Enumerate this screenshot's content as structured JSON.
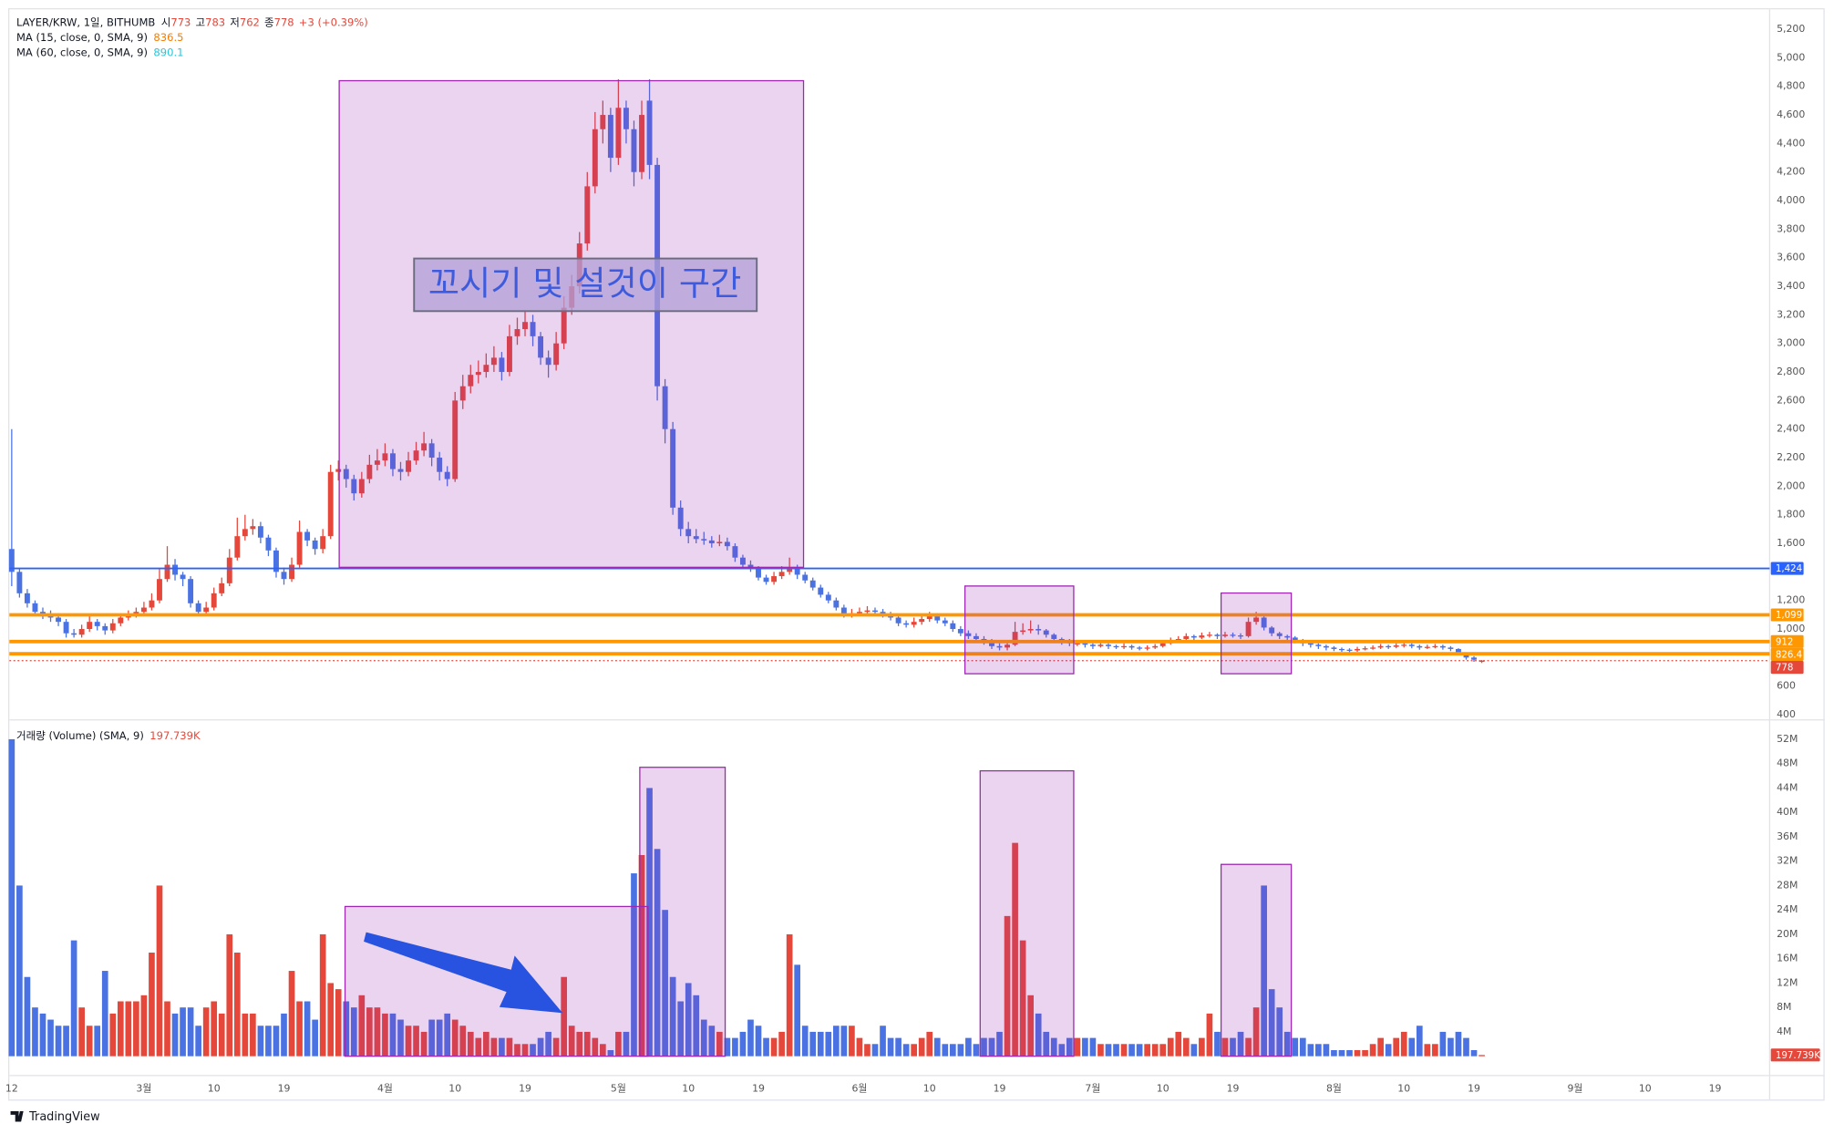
{
  "chart_data": {
    "type": "candlestick",
    "symbol": "LAYER/KRW, 1일, BITHUMB",
    "ohlc_labels": [
      "시",
      "고",
      "저",
      "종"
    ],
    "change": "+3 (+0.39%)",
    "indicators": [
      {
        "name": "MA (15, close, 0, SMA, 9)",
        "value": 836.5,
        "color": "#f57c00"
      },
      {
        "name": "MA (60, close, 0, SMA, 9)",
        "value": 890.1,
        "color": "#26c6da"
      }
    ],
    "annotation": "꼬시기 및 설것이 구간",
    "watermark": "TradingView",
    "up_color": "#e5483b",
    "down_color": "#4a72e3",
    "categories": [
      "12",
      null,
      null,
      null,
      null,
      null,
      null,
      null,
      null,
      null,
      null,
      null,
      null,
      null,
      null,
      null,
      null,
      "3월",
      null,
      null,
      null,
      null,
      null,
      null,
      null,
      null,
      "10",
      null,
      null,
      null,
      null,
      null,
      null,
      null,
      null,
      "19",
      null,
      null,
      null,
      null,
      null,
      null,
      null,
      null,
      null,
      null,
      null,
      null,
      "4월",
      null,
      null,
      null,
      null,
      null,
      null,
      null,
      null,
      "10",
      null,
      null,
      null,
      null,
      null,
      null,
      null,
      null,
      "19",
      null,
      null,
      null,
      null,
      null,
      null,
      null,
      null,
      null,
      null,
      null,
      "5월",
      null,
      null,
      null,
      null,
      null,
      null,
      null,
      null,
      "10",
      null,
      null,
      null,
      null,
      null,
      null,
      null,
      null,
      "19",
      null,
      null,
      null,
      null,
      null,
      null,
      null,
      null,
      null,
      null,
      null,
      null,
      "6월",
      null,
      null,
      null,
      null,
      null,
      null,
      null,
      null,
      "10",
      null,
      null,
      null,
      null,
      null,
      null,
      null,
      null,
      "19",
      null,
      null,
      null,
      null,
      null,
      null,
      null,
      null,
      null,
      null,
      null,
      "7월",
      null,
      null,
      null,
      null,
      null,
      null,
      null,
      null,
      "10",
      null,
      null,
      null,
      null,
      null,
      null,
      null,
      null,
      "19",
      null,
      null,
      null,
      null,
      null,
      null,
      null,
      null,
      null,
      null,
      null,
      null,
      "8월",
      null,
      null,
      null,
      null,
      null,
      null,
      null,
      null,
      "10",
      null,
      null,
      null,
      null,
      null,
      null,
      null,
      null,
      "19",
      null,
      null,
      null,
      null,
      null,
      null,
      null,
      null,
      null,
      null,
      null,
      null,
      "9월",
      null,
      null,
      null,
      null,
      null,
      null,
      null,
      null,
      "10",
      null,
      null,
      null,
      null,
      null,
      null,
      null,
      null,
      "19",
      null,
      null,
      null,
      null,
      null,
      null
    ],
    "open": [
      1560,
      1400,
      1250,
      1180,
      1120,
      1100,
      1080,
      1050,
      970,
      960,
      1000,
      1050,
      1020,
      990,
      1040,
      1080,
      1100,
      1120,
      1150,
      1200,
      1350,
      1450,
      1380,
      1350,
      1180,
      1120,
      1150,
      1250,
      1320,
      1500,
      1650,
      1700,
      1720,
      1640,
      1550,
      1400,
      1350,
      1450,
      1680,
      1620,
      1560,
      1650,
      2100,
      2120,
      2050,
      1950,
      2050,
      2150,
      2180,
      2230,
      2120,
      2100,
      2180,
      2250,
      2300,
      2200,
      2100,
      2050,
      2600,
      2700,
      2780,
      2800,
      2850,
      2900,
      2800,
      3050,
      3100,
      3150,
      3050,
      2900,
      2850,
      3000,
      3250,
      3400,
      3700,
      4100,
      4500,
      4600,
      4300,
      4650,
      4500,
      4200,
      4700,
      4250,
      2700,
      2400,
      1850,
      1700,
      1650,
      1630,
      1620,
      1600,
      1610,
      1580,
      1500,
      1450,
      1420,
      1360,
      1330,
      1370,
      1400,
      1420,
      1380,
      1340,
      1290,
      1240,
      1200,
      1150,
      1100,
      1110,
      1120,
      1130,
      1120,
      1100,
      1080,
      1040,
      1030,
      1050,
      1070,
      1090,
      1060,
      1040,
      1000,
      970,
      950,
      930,
      910,
      880,
      870,
      890,
      980,
      990,
      1000,
      990,
      960,
      930,
      910,
      900,
      900,
      890,
      880,
      890,
      880,
      875,
      880,
      870,
      865,
      870,
      880,
      900,
      920,
      930,
      950,
      940,
      955,
      960,
      950,
      960,
      955,
      950,
      1050,
      1080,
      1010,
      970,
      950,
      940,
      920,
      900,
      890,
      880,
      870,
      860,
      855,
      850,
      860,
      865,
      870,
      880,
      875,
      885,
      890,
      880,
      870,
      875,
      880,
      870,
      860,
      830,
      800,
      773,
      null,
      null,
      null,
      null,
      null,
      null,
      null,
      null,
      null,
      null,
      null,
      null,
      null,
      null,
      null,
      null,
      null,
      null,
      null,
      null,
      null,
      null,
      null,
      null,
      null,
      null,
      null,
      null,
      null,
      null,
      null,
      null,
      null,
      null,
      null,
      null
    ],
    "high": [
      2400,
      1420,
      1280,
      1200,
      1150,
      1130,
      1110,
      1070,
      1000,
      1030,
      1100,
      1070,
      1040,
      1070,
      1110,
      1130,
      1150,
      1190,
      1250,
      1420,
      1580,
      1490,
      1400,
      1370,
      1200,
      1190,
      1290,
      1360,
      1560,
      1780,
      1800,
      1770,
      1750,
      1660,
      1570,
      1430,
      1500,
      1760,
      1700,
      1640,
      1700,
      2150,
      2180,
      2150,
      2080,
      2100,
      2220,
      2260,
      2300,
      2260,
      2170,
      2240,
      2310,
      2380,
      2330,
      2240,
      2140,
      2660,
      2780,
      2850,
      2880,
      2930,
      2980,
      2940,
      3130,
      3180,
      3230,
      3200,
      3080,
      2950,
      3080,
      3330,
      3480,
      3780,
      4200,
      4620,
      4700,
      4650,
      4850,
      4700,
      4560,
      4700,
      4850,
      4300,
      2750,
      2450,
      1900,
      1750,
      1700,
      1680,
      1650,
      1660,
      1640,
      1600,
      1520,
      1480,
      1440,
      1380,
      1400,
      1440,
      1500,
      1450,
      1400,
      1360,
      1310,
      1260,
      1220,
      1170,
      1140,
      1150,
      1160,
      1150,
      1140,
      1120,
      1100,
      1060,
      1080,
      1100,
      1120,
      1110,
      1080,
      1060,
      1020,
      990,
      970,
      950,
      930,
      900,
      920,
      1050,
      1040,
      1060,
      1030,
      1000,
      970,
      940,
      930,
      920,
      910,
      900,
      910,
      900,
      890,
      900,
      890,
      880,
      885,
      895,
      920,
      940,
      950,
      970,
      960,
      975,
      980,
      970,
      980,
      975,
      970,
      1080,
      1120,
      1090,
      1020,
      980,
      960,
      950,
      930,
      910,
      900,
      890,
      880,
      870,
      865,
      875,
      880,
      885,
      895,
      890,
      900,
      905,
      900,
      890,
      890,
      895,
      890,
      880,
      865,
      835,
      810,
      783,
      null,
      null,
      null,
      null,
      null,
      null,
      null,
      null,
      null,
      null,
      null,
      null,
      null,
      null,
      null,
      null,
      null,
      null,
      null,
      null,
      null,
      null,
      null,
      null,
      null,
      null,
      null,
      null,
      null,
      null,
      null,
      null,
      null,
      null,
      null,
      null
    ],
    "low": [
      1300,
      1220,
      1150,
      1090,
      1070,
      1050,
      1020,
      940,
      940,
      940,
      980,
      990,
      960,
      970,
      1020,
      1060,
      1080,
      1100,
      1130,
      1180,
      1330,
      1340,
      1300,
      1150,
      1090,
      1100,
      1130,
      1230,
      1300,
      1480,
      1620,
      1660,
      1600,
      1510,
      1360,
      1310,
      1330,
      1430,
      1580,
      1520,
      1530,
      1630,
      2040,
      1990,
      1900,
      1920,
      2020,
      2110,
      2140,
      2070,
      2040,
      2070,
      2150,
      2210,
      2140,
      2040,
      2000,
      2030,
      2540,
      2650,
      2720,
      2760,
      2800,
      2740,
      2770,
      2990,
      3050,
      2980,
      2850,
      2760,
      2810,
      2960,
      3200,
      3350,
      3650,
      4050,
      4400,
      4200,
      4250,
      4400,
      4100,
      4150,
      4150,
      2600,
      2300,
      1800,
      1650,
      1600,
      1600,
      1590,
      1570,
      1580,
      1550,
      1470,
      1420,
      1400,
      1340,
      1310,
      1310,
      1350,
      1380,
      1350,
      1320,
      1270,
      1220,
      1180,
      1130,
      1080,
      1080,
      1090,
      1100,
      1100,
      1080,
      1060,
      1020,
      1010,
      1010,
      1030,
      1050,
      1040,
      1020,
      980,
      950,
      930,
      910,
      890,
      860,
      850,
      850,
      880,
      960,
      970,
      960,
      940,
      910,
      890,
      880,
      880,
      870,
      860,
      870,
      860,
      860,
      860,
      855,
      850,
      850,
      860,
      870,
      890,
      910,
      920,
      920,
      930,
      940,
      930,
      940,
      940,
      930,
      940,
      1030,
      990,
      950,
      930,
      920,
      900,
      880,
      870,
      860,
      850,
      845,
      840,
      835,
      840,
      850,
      855,
      860,
      860,
      865,
      870,
      865,
      855,
      860,
      865,
      855,
      845,
      815,
      785,
      770,
      762,
      null,
      null,
      null,
      null,
      null,
      null,
      null,
      null,
      null,
      null,
      null,
      null,
      null,
      null,
      null,
      null,
      null,
      null,
      null,
      null,
      null,
      null,
      null,
      null,
      null,
      null,
      null,
      null,
      null,
      null,
      null,
      null,
      null,
      null,
      null,
      null
    ],
    "close": [
      1400,
      1250,
      1180,
      1120,
      1100,
      1080,
      1050,
      970,
      960,
      1000,
      1050,
      1020,
      990,
      1040,
      1080,
      1100,
      1120,
      1150,
      1200,
      1350,
      1450,
      1380,
      1350,
      1180,
      1120,
      1150,
      1250,
      1320,
      1500,
      1650,
      1700,
      1720,
      1640,
      1550,
      1400,
      1350,
      1450,
      1680,
      1620,
      1560,
      1650,
      2100,
      2120,
      2050,
      1950,
      2050,
      2150,
      2180,
      2230,
      2120,
      2100,
      2180,
      2250,
      2300,
      2200,
      2100,
      2050,
      2600,
      2700,
      2780,
      2800,
      2850,
      2900,
      2800,
      3050,
      3100,
      3150,
      3050,
      2900,
      2850,
      3000,
      3250,
      3400,
      3700,
      4100,
      4500,
      4600,
      4300,
      4650,
      4500,
      4200,
      4600,
      4250,
      2700,
      2400,
      1850,
      1700,
      1650,
      1630,
      1620,
      1600,
      1610,
      1580,
      1500,
      1450,
      1420,
      1360,
      1330,
      1370,
      1400,
      1420,
      1380,
      1340,
      1290,
      1240,
      1200,
      1150,
      1100,
      1110,
      1120,
      1130,
      1120,
      1100,
      1080,
      1040,
      1030,
      1050,
      1070,
      1090,
      1060,
      1040,
      1000,
      970,
      950,
      930,
      910,
      880,
      870,
      890,
      980,
      990,
      1000,
      990,
      960,
      930,
      910,
      900,
      900,
      890,
      880,
      890,
      880,
      875,
      880,
      870,
      865,
      870,
      880,
      900,
      920,
      930,
      950,
      940,
      955,
      960,
      950,
      960,
      955,
      950,
      1050,
      1080,
      1010,
      970,
      950,
      940,
      920,
      900,
      890,
      880,
      870,
      860,
      855,
      850,
      860,
      865,
      870,
      880,
      875,
      885,
      890,
      880,
      870,
      875,
      880,
      870,
      860,
      830,
      800,
      785,
      778,
      null,
      null,
      null,
      null,
      null,
      null,
      null,
      null,
      null,
      null,
      null,
      null,
      null,
      null,
      null,
      null,
      null,
      null,
      null,
      null,
      null,
      null,
      null,
      null,
      null,
      null,
      null,
      null,
      null,
      null,
      null,
      null,
      null,
      null,
      null,
      null
    ],
    "ylim": [
      400,
      5200
    ],
    "yticks": [
      {
        "value": 5200,
        "label": "5,200"
      },
      {
        "value": 5000,
        "label": "5,000"
      },
      {
        "value": 4800,
        "label": "4,800"
      },
      {
        "value": 4600,
        "label": "4,600"
      },
      {
        "value": 4400,
        "label": "4,400"
      },
      {
        "value": 4200,
        "label": "4,200"
      },
      {
        "value": 4000,
        "label": "4,000"
      },
      {
        "value": 3800,
        "label": "3,800"
      },
      {
        "value": 3600,
        "label": "3,600"
      },
      {
        "value": 3400,
        "label": "3,400"
      },
      {
        "value": 3200,
        "label": "3,200"
      },
      {
        "value": 3000,
        "label": "3,000"
      },
      {
        "value": 2800,
        "label": "2,800"
      },
      {
        "value": 2600,
        "label": "2,600"
      },
      {
        "value": 2400,
        "label": "2,400"
      },
      {
        "value": 2200,
        "label": "2,200"
      },
      {
        "value": 2000,
        "label": "2,000"
      },
      {
        "value": 1800,
        "label": "1,800"
      },
      {
        "value": 1600,
        "label": "1,600"
      },
      {
        "value": 1200,
        "label": "1,200"
      },
      {
        "value": 1000,
        "label": "1,000"
      },
      600,
      400
    ],
    "levels": [
      {
        "value": 1424,
        "label": "1,424",
        "color": "#2962ff",
        "width": 1.5
      },
      {
        "value": 1099,
        "label": "1,099",
        "color": "#ff9800",
        "width": 3
      },
      {
        "value": 912,
        "color": "#ff9800",
        "width": 3
      },
      {
        "value": 826.4,
        "color": "#ff9800",
        "width": 3
      },
      {
        "value": 778,
        "color": "#e5483b",
        "width": 1,
        "style": "dotted"
      }
    ],
    "volume": {
      "name": "거래량 (Volume) (SMA, 9)",
      "last_label": "197.739K",
      "ylim": [
        0,
        52
      ],
      "yticks": [
        {
          "value": 52,
          "label": "52M"
        },
        {
          "value": 48,
          "label": "48M"
        },
        {
          "value": 44,
          "label": "44M"
        },
        {
          "value": 40,
          "label": "40M"
        },
        {
          "value": 36,
          "label": "36M"
        },
        {
          "value": 32,
          "label": "32M"
        },
        {
          "value": 28,
          "label": "28M"
        },
        {
          "value": 24,
          "label": "24M"
        },
        {
          "value": 20,
          "label": "20M"
        },
        {
          "value": 16,
          "label": "16M"
        },
        {
          "value": 12,
          "label": "12M"
        },
        {
          "value": 8,
          "label": "8M"
        },
        {
          "value": 4,
          "label": "4M"
        }
      ],
      "values": [
        52,
        28,
        13,
        8,
        7,
        6,
        5,
        5,
        19,
        8,
        5,
        5,
        14,
        7,
        9,
        9,
        9,
        10,
        17,
        28,
        9,
        7,
        8,
        8,
        5,
        8,
        9,
        7,
        20,
        17,
        7,
        7,
        5,
        5,
        5,
        7,
        14,
        9,
        9,
        6,
        20,
        12,
        11,
        9,
        8,
        10,
        8,
        8,
        7,
        7,
        6,
        5,
        5,
        4,
        6,
        6,
        7,
        6,
        5,
        4,
        3,
        4,
        3,
        3,
        3,
        2,
        2,
        2,
        3,
        4,
        3,
        13,
        5,
        4,
        4,
        3,
        2,
        1,
        4,
        4,
        30,
        33,
        44,
        34,
        24,
        13,
        9,
        12,
        10,
        6,
        5,
        4,
        3,
        3,
        4,
        6,
        5,
        3,
        3,
        4,
        20,
        15,
        5,
        4,
        4,
        4,
        5,
        5,
        5,
        3,
        2,
        2,
        5,
        3,
        3,
        2,
        2,
        3,
        4,
        3,
        2,
        2,
        2,
        3,
        2,
        3,
        3,
        4,
        23,
        35,
        19,
        10,
        7,
        4,
        3,
        2,
        3,
        3,
        3,
        3,
        2,
        2,
        2,
        2,
        2,
        2,
        2,
        2,
        2,
        3,
        4,
        3,
        2,
        3,
        7,
        4,
        3,
        3,
        4,
        3,
        8,
        28,
        11,
        8,
        4,
        3,
        3,
        2,
        2,
        2,
        1,
        1,
        1,
        1,
        1,
        2,
        3,
        2,
        3,
        4,
        3,
        5,
        2,
        2,
        4,
        3,
        4,
        3,
        1,
        0.197739,
        null,
        null,
        null,
        null,
        null,
        null,
        null,
        null,
        null,
        null,
        null,
        null,
        null,
        null,
        null,
        null,
        null,
        null,
        null,
        null,
        null,
        null,
        null,
        null,
        null,
        null,
        null,
        null,
        null,
        null,
        null,
        null,
        null,
        null,
        null,
        null
      ]
    }
  }
}
